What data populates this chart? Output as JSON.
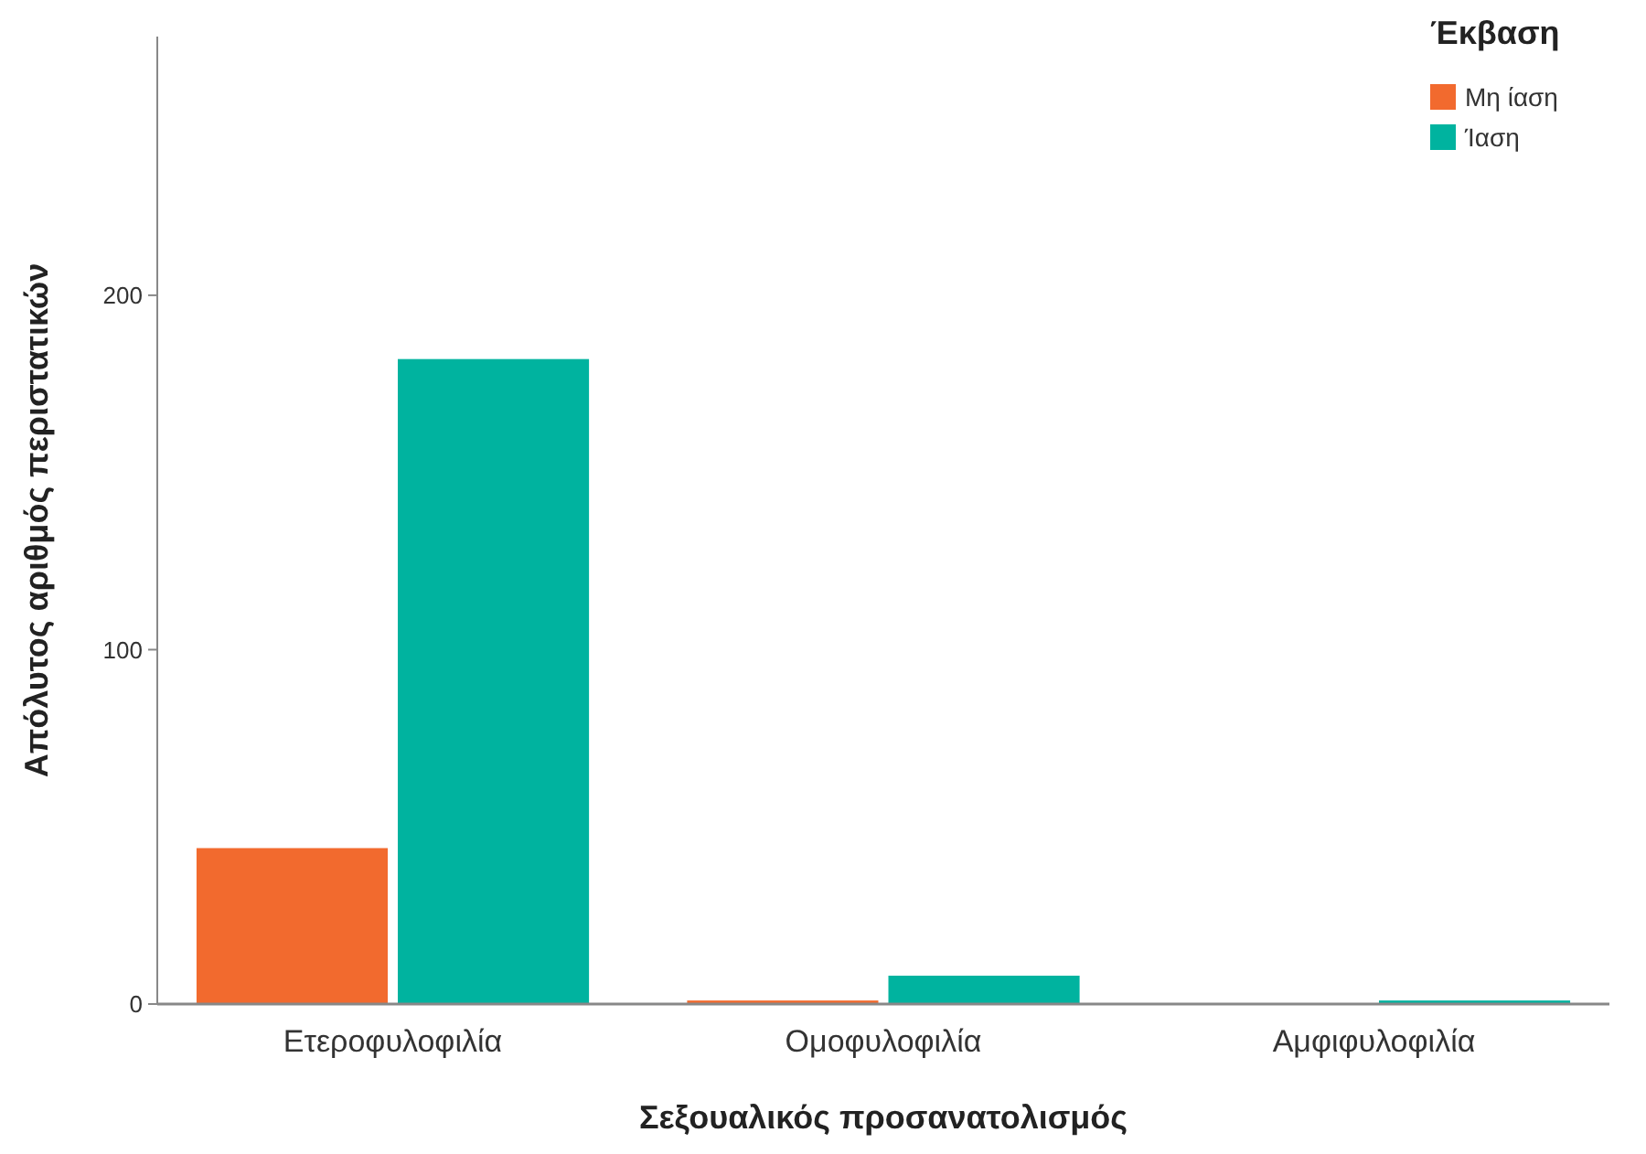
{
  "chart_data": {
    "type": "bar",
    "xlabel": "Σεξουαλικός προσανατολισμός",
    "ylabel": "Απόλυτος αριθμός περιστατικών",
    "legend_title": "Έκβαση",
    "categories": [
      "Ετεροφυλοφιλία",
      "Ομοφυλοφιλία",
      "Αμφιφυλοφιλία"
    ],
    "series": [
      {
        "name": "Μη ίαση",
        "color": "#f26a2e",
        "values": [
          44,
          1,
          0
        ]
      },
      {
        "name": "Ίαση",
        "color": "#00b39f",
        "values": [
          182,
          8,
          1
        ]
      }
    ],
    "ylim": [
      0,
      273
    ],
    "yticks": [
      0,
      100,
      200
    ],
    "grid": false,
    "legend": "top right"
  }
}
